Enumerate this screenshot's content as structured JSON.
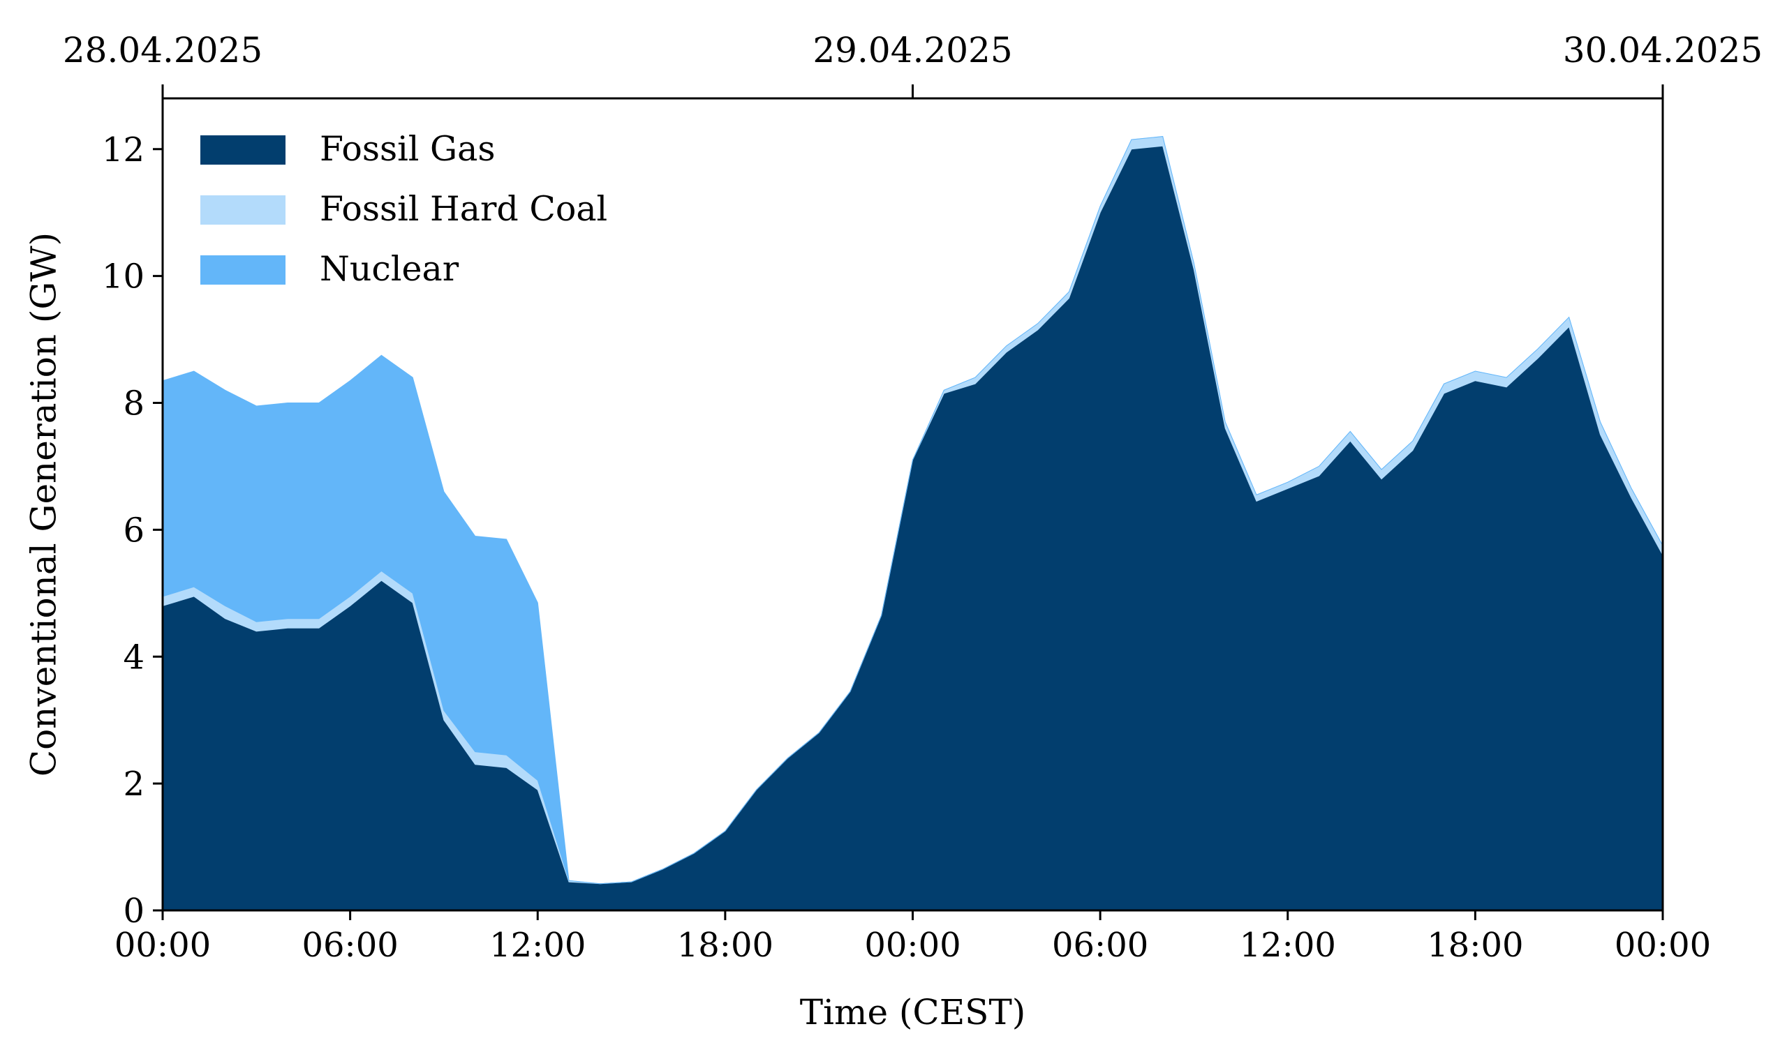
{
  "chart_data": {
    "type": "area",
    "stacked": true,
    "title": "",
    "xlabel": "Time (CEST)",
    "ylabel": "Conventional Generation (GW)",
    "ylim": [
      0,
      12.8
    ],
    "xlim": [
      0,
      48
    ],
    "x_hours": [
      0,
      1,
      2,
      3,
      4,
      5,
      6,
      7,
      8,
      9,
      10,
      11,
      12,
      13,
      14,
      15,
      16,
      17,
      18,
      19,
      20,
      21,
      22,
      23,
      24,
      25,
      26,
      27,
      28,
      29,
      30,
      31,
      32,
      33,
      34,
      35,
      36,
      37,
      38,
      39,
      40,
      41,
      42,
      43,
      44,
      45,
      46,
      47,
      48
    ],
    "y_ticks": [
      0,
      2,
      4,
      6,
      8,
      10,
      12
    ],
    "x_ticks": [
      {
        "hour": 0,
        "label": "00:00"
      },
      {
        "hour": 6,
        "label": "06:00"
      },
      {
        "hour": 12,
        "label": "12:00"
      },
      {
        "hour": 18,
        "label": "18:00"
      },
      {
        "hour": 24,
        "label": "00:00"
      },
      {
        "hour": 30,
        "label": "06:00"
      },
      {
        "hour": 36,
        "label": "12:00"
      },
      {
        "hour": 42,
        "label": "18:00"
      },
      {
        "hour": 48,
        "label": "00:00"
      }
    ],
    "top_ticks": [
      {
        "hour": 0,
        "label": "28.04.2025"
      },
      {
        "hour": 24,
        "label": "29.04.2025"
      },
      {
        "hour": 48,
        "label": "30.04.2025"
      }
    ],
    "grid": false,
    "legend_position": "top-left",
    "series": [
      {
        "name": "Fossil Gas",
        "color": "#023e6e",
        "values": [
          4.8,
          4.95,
          4.6,
          4.4,
          4.45,
          4.45,
          4.8,
          5.2,
          4.85,
          3.0,
          2.3,
          2.25,
          1.9,
          0.45,
          0.42,
          0.45,
          0.65,
          0.9,
          1.25,
          1.9,
          2.4,
          2.8,
          3.45,
          4.65,
          7.1,
          8.15,
          8.3,
          8.8,
          9.15,
          9.65,
          11.0,
          12.0,
          12.05,
          10.1,
          7.6,
          6.45,
          6.65,
          6.85,
          7.4,
          6.8,
          7.25,
          8.15,
          8.35,
          8.25,
          8.7,
          9.2,
          7.5,
          6.5,
          5.6
        ]
      },
      {
        "name": "Fossil Hard Coal",
        "color": "#b3dbfb",
        "values": [
          0.15,
          0.15,
          0.2,
          0.15,
          0.15,
          0.15,
          0.15,
          0.15,
          0.15,
          0.15,
          0.2,
          0.2,
          0.15,
          0.02,
          0.0,
          0.0,
          0.0,
          0.0,
          0.0,
          0.0,
          0.0,
          0.0,
          0.0,
          0.0,
          0.0,
          0.05,
          0.1,
          0.1,
          0.1,
          0.1,
          0.1,
          0.15,
          0.15,
          0.1,
          0.1,
          0.1,
          0.1,
          0.15,
          0.15,
          0.15,
          0.15,
          0.15,
          0.15,
          0.15,
          0.15,
          0.15,
          0.2,
          0.15,
          0.15
        ]
      },
      {
        "name": "Nuclear",
        "color": "#63b6f9",
        "values": [
          3.4,
          3.4,
          3.4,
          3.4,
          3.4,
          3.4,
          3.4,
          3.4,
          3.4,
          3.45,
          3.4,
          3.4,
          2.8,
          0.0,
          0.0,
          0.0,
          0.0,
          0.0,
          0.0,
          0.0,
          0.0,
          0.0,
          0.0,
          0.0,
          0.0,
          0.0,
          0.0,
          0.0,
          0.0,
          0.0,
          0.0,
          0.0,
          0.0,
          0.0,
          0.0,
          0.0,
          0.0,
          0.0,
          0.0,
          0.0,
          0.0,
          0.0,
          0.0,
          0.0,
          0.0,
          0.0,
          0.0,
          0.0,
          0.0
        ]
      }
    ]
  }
}
